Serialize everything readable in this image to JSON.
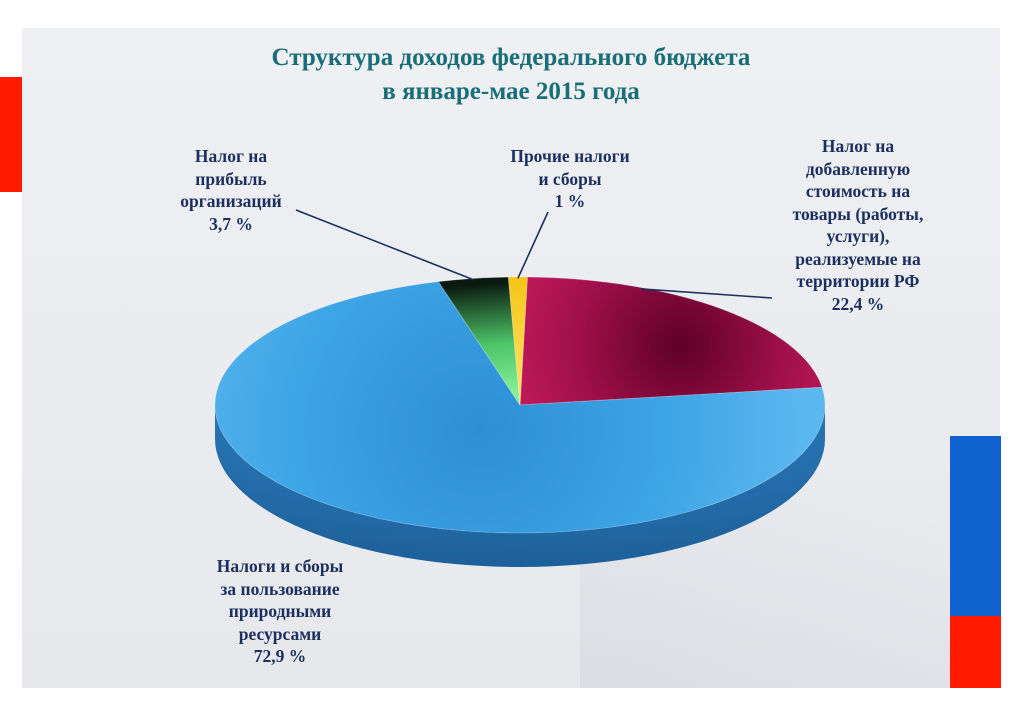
{
  "title": {
    "line1": "Структура доходов федерального бюджета",
    "line2": "в январе-мае 2015 года"
  },
  "colors": {
    "title": "#1a6e77",
    "labels": "#1c2f5e",
    "flag_red": "#ff1a00",
    "flag_blue": "#0f62d0"
  },
  "chart_data": {
    "type": "pie",
    "style": "3d",
    "title": "Структура доходов федерального бюджета в январе-мае 2015 года",
    "unit": "%",
    "slices": [
      {
        "label_lines": [
          "Налог на",
          "добавленную",
          "стоимость на",
          "товары (работы,",
          "услуги),",
          "реализуемые на",
          "территории РФ"
        ],
        "value": 22.4,
        "value_text": "22,4 %",
        "color": "#b0134f"
      },
      {
        "label_lines": [
          "Налоги и сборы",
          "за пользование",
          "природными",
          "ресурсами"
        ],
        "value": 72.9,
        "value_text": "72,9 %",
        "color": "#3aa3e3"
      },
      {
        "label_lines": [
          "Налог на",
          "прибыль",
          "организаций"
        ],
        "value": 3.7,
        "value_text": "3,7 %",
        "color": "#5fd87a"
      },
      {
        "label_lines": [
          "Прочие налоги",
          "и сборы"
        ],
        "value": 1.0,
        "value_text": "1 %",
        "color": "#f5c816"
      }
    ]
  }
}
